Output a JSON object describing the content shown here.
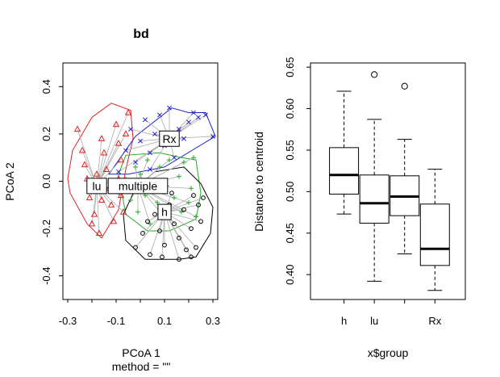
{
  "chart_data": [
    {
      "type": "scatter",
      "title": "bd",
      "xlabel": "PCoA 1",
      "sublabel": "method = \"\"",
      "ylabel": "PCoA 2",
      "xlim": [
        -0.32,
        0.32
      ],
      "ylim": [
        -0.5,
        0.5
      ],
      "xticks": [
        "-0.3",
        "-0.1",
        "0.1",
        "0.3"
      ],
      "yticks": [
        "-0.4",
        "-0.2",
        "0.0",
        "0.2",
        "0.4"
      ],
      "series": [
        {
          "name": "lu",
          "color": "#dd2222",
          "marker": "triangle",
          "centroid": [
            -0.18,
            -0.02
          ],
          "points": [
            [
              -0.26,
              0.22
            ],
            [
              -0.24,
              0.13
            ],
            [
              -0.23,
              0.07
            ],
            [
              -0.22,
              0.01
            ],
            [
              -0.21,
              -0.07
            ],
            [
              -0.19,
              -0.14
            ],
            [
              -0.17,
              -0.22
            ],
            [
              -0.16,
              0.18
            ],
            [
              -0.15,
              0.12
            ],
            [
              -0.14,
              0.05
            ],
            [
              -0.13,
              -0.03
            ],
            [
              -0.12,
              -0.1
            ],
            [
              -0.11,
              -0.17
            ],
            [
              -0.1,
              0.24
            ],
            [
              -0.09,
              0.16
            ],
            [
              -0.08,
              0.09
            ],
            [
              -0.09,
              0.01
            ],
            [
              -0.08,
              -0.06
            ],
            [
              -0.07,
              -0.13
            ],
            [
              -0.06,
              0.2
            ],
            [
              -0.05,
              0.29
            ],
            [
              -0.2,
              -0.18
            ],
            [
              -0.18,
              0.03
            ],
            [
              -0.16,
              -0.08
            ]
          ],
          "hull": [
            [
              -0.3,
              0.01
            ],
            [
              -0.28,
              0.13
            ],
            [
              -0.2,
              0.27
            ],
            [
              -0.12,
              0.33
            ],
            [
              -0.04,
              0.3
            ],
            [
              -0.03,
              0.18
            ],
            [
              -0.06,
              0.05
            ],
            [
              -0.09,
              -0.12
            ],
            [
              -0.16,
              -0.24
            ],
            [
              -0.22,
              -0.18
            ],
            [
              -0.29,
              -0.05
            ]
          ]
        },
        {
          "name": "Rx",
          "color": "#2222cc",
          "marker": "cross",
          "centroid": [
            0.12,
            0.18
          ],
          "points": [
            [
              -0.09,
              0.04
            ],
            [
              -0.06,
              0.13
            ],
            [
              -0.04,
              0.22
            ],
            [
              -0.02,
              0.08
            ],
            [
              0.0,
              0.17
            ],
            [
              0.02,
              0.26
            ],
            [
              0.04,
              0.12
            ],
            [
              0.06,
              0.2
            ],
            [
              0.08,
              0.28
            ],
            [
              0.1,
              0.15
            ],
            [
              0.12,
              0.31
            ],
            [
              0.14,
              0.1
            ],
            [
              0.16,
              0.22
            ],
            [
              0.18,
              0.18
            ],
            [
              0.2,
              0.25
            ],
            [
              0.22,
              0.29
            ],
            [
              0.24,
              0.27
            ],
            [
              0.27,
              0.28
            ],
            [
              0.3,
              0.19
            ],
            [
              0.04,
              0.05
            ]
          ],
          "hull": [
            [
              -0.13,
              0.03
            ],
            [
              -0.02,
              0.19
            ],
            [
              0.13,
              0.31
            ],
            [
              0.2,
              0.29
            ],
            [
              0.27,
              0.29
            ],
            [
              0.31,
              0.19
            ],
            [
              0.1,
              0.06
            ],
            [
              -0.05,
              0.03
            ]
          ]
        },
        {
          "name": "multiple",
          "color": "#22aa22",
          "marker": "plus",
          "centroid": [
            -0.01,
            -0.02
          ],
          "points": [
            [
              -0.06,
              0.01
            ],
            [
              -0.04,
              -0.08
            ],
            [
              -0.02,
              0.06
            ],
            [
              -0.01,
              -0.13
            ],
            [
              0.0,
              0.03
            ],
            [
              0.02,
              -0.06
            ],
            [
              0.03,
              0.09
            ],
            [
              0.04,
              -0.18
            ],
            [
              0.05,
              0.0
            ],
            [
              0.07,
              -0.09
            ],
            [
              0.08,
              0.06
            ],
            [
              0.09,
              -0.14
            ],
            [
              0.11,
              -0.02
            ],
            [
              0.12,
              0.09
            ],
            [
              0.14,
              -0.07
            ],
            [
              0.16,
              0.02
            ],
            [
              0.17,
              -0.13
            ],
            [
              0.18,
              0.08
            ],
            [
              0.2,
              -0.09
            ],
            [
              0.21,
              -0.03
            ],
            [
              0.22,
              0.1
            ],
            [
              0.23,
              -0.15
            ]
          ],
          "hull": [
            [
              -0.09,
              0.03
            ],
            [
              -0.06,
              0.11
            ],
            [
              0.08,
              0.12
            ],
            [
              0.17,
              0.1
            ],
            [
              0.23,
              0.09
            ],
            [
              0.25,
              -0.05
            ],
            [
              0.23,
              -0.16
            ],
            [
              0.12,
              -0.21
            ],
            [
              0.03,
              -0.21
            ],
            [
              -0.06,
              -0.14
            ]
          ]
        },
        {
          "name": "h",
          "color": "#000000",
          "marker": "circle",
          "centroid": [
            0.1,
            -0.13
          ],
          "points": [
            [
              -0.02,
              -0.28
            ],
            [
              0.01,
              -0.22
            ],
            [
              0.04,
              -0.31
            ],
            [
              0.06,
              -0.14
            ],
            [
              0.08,
              -0.21
            ],
            [
              0.1,
              -0.27
            ],
            [
              0.12,
              -0.1
            ],
            [
              0.14,
              -0.18
            ],
            [
              0.16,
              -0.24
            ],
            [
              0.18,
              -0.12
            ],
            [
              0.19,
              -0.29
            ],
            [
              0.21,
              -0.2
            ],
            [
              0.22,
              -0.06
            ],
            [
              0.23,
              -0.28
            ],
            [
              0.25,
              -0.17
            ],
            [
              0.24,
              -0.1
            ],
            [
              0.09,
              -0.32
            ],
            [
              0.16,
              -0.33
            ],
            [
              0.21,
              -0.32
            ],
            [
              0.26,
              -0.07
            ],
            [
              0.03,
              -0.17
            ],
            [
              0.13,
              -0.05
            ]
          ],
          "hull": [
            [
              -0.06,
              -0.25
            ],
            [
              0.02,
              -0.33
            ],
            [
              0.16,
              -0.33
            ],
            [
              0.23,
              -0.32
            ],
            [
              0.29,
              -0.22
            ],
            [
              0.3,
              -0.11
            ],
            [
              0.25,
              -0.01
            ],
            [
              0.18,
              0.06
            ],
            [
              0.06,
              0.04
            ],
            [
              -0.02,
              -0.03
            ],
            [
              -0.07,
              -0.14
            ]
          ]
        }
      ]
    },
    {
      "type": "box",
      "title": "",
      "xlabel": "x$group",
      "ylabel": "Distance to centroid",
      "ylim": [
        0.37,
        0.655
      ],
      "yticks": [
        "0.40",
        "0.45",
        "0.50",
        "0.55",
        "0.60",
        "0.65"
      ],
      "categories": [
        "h",
        "lu",
        "",
        "Rx"
      ],
      "boxes": [
        {
          "group": "h",
          "min": 0.473,
          "q1": 0.497,
          "median": 0.52,
          "q3": 0.553,
          "max": 0.621,
          "outliers": []
        },
        {
          "group": "lu",
          "min": 0.392,
          "q1": 0.462,
          "median": 0.486,
          "q3": 0.52,
          "max": 0.587,
          "outliers": [
            0.641
          ]
        },
        {
          "group": "multiple",
          "min": 0.425,
          "q1": 0.471,
          "median": 0.494,
          "q3": 0.519,
          "max": 0.563,
          "outliers": [
            0.627
          ]
        },
        {
          "group": "Rx",
          "min": 0.381,
          "q1": 0.411,
          "median": 0.431,
          "q3": 0.485,
          "max": 0.527,
          "outliers": []
        }
      ]
    }
  ]
}
